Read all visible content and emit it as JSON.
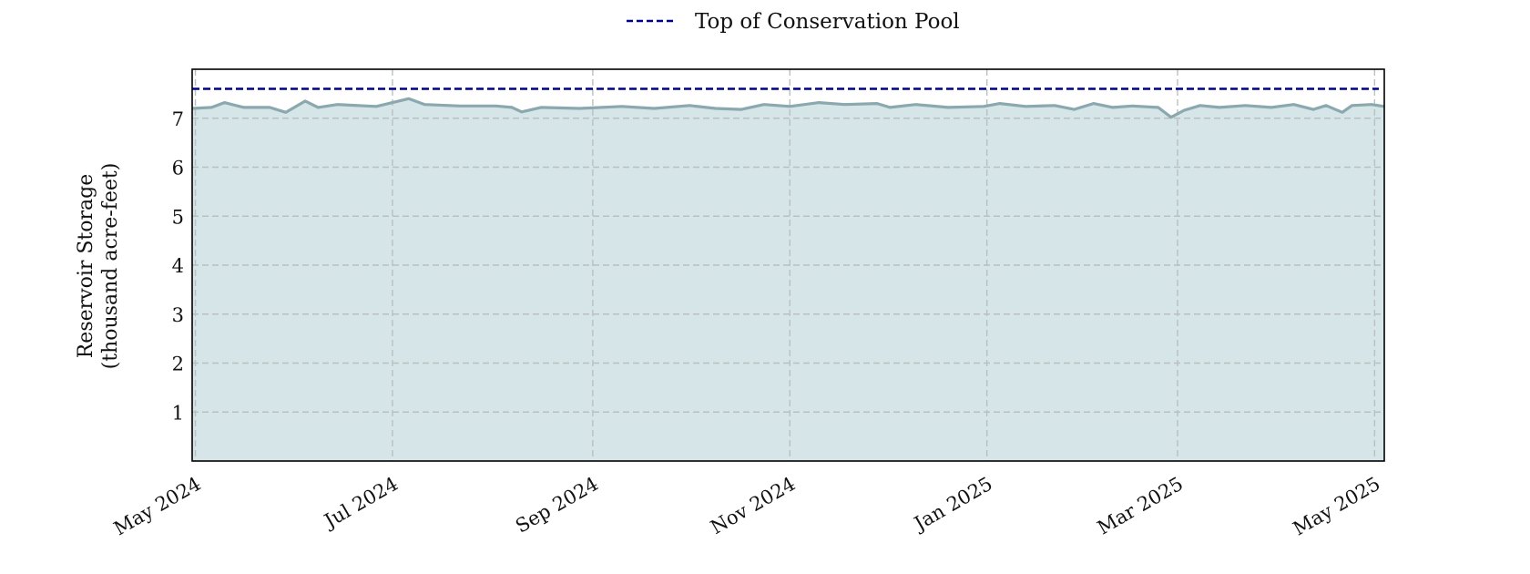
{
  "chart_data": {
    "type": "area",
    "title": "",
    "xlabel": "",
    "ylabel_lines": [
      "Reservoir Storage",
      "(thousand acre-feet)"
    ],
    "x_range": [
      "2024-04-30",
      "2025-05-04"
    ],
    "ylim": [
      0,
      8.0
    ],
    "y_ticks": [
      1,
      2,
      3,
      4,
      5,
      6,
      7
    ],
    "x_ticks": [
      {
        "date": "2024-05-01",
        "label": "May 2024"
      },
      {
        "date": "2024-07-01",
        "label": "Jul 2024"
      },
      {
        "date": "2024-09-01",
        "label": "Sep 2024"
      },
      {
        "date": "2024-11-01",
        "label": "Nov 2024"
      },
      {
        "date": "2025-01-01",
        "label": "Jan 2025"
      },
      {
        "date": "2025-03-01",
        "label": "Mar 2025"
      },
      {
        "date": "2025-05-01",
        "label": "May 2025"
      }
    ],
    "grid": true,
    "legend": {
      "position": "top-center",
      "entries": [
        {
          "label": "Top of Conservation Pool",
          "style": "dashed",
          "color": "#00008b"
        }
      ]
    },
    "reference_line": {
      "label": "Top of Conservation Pool",
      "value": 7.6,
      "color": "#00008b"
    },
    "series": [
      {
        "style": "line-with-area-fill",
        "line_color": "#8aa8ae",
        "fill_color": "#d6e5e7",
        "points": [
          [
            "2024-04-30",
            7.2
          ],
          [
            "2024-05-06",
            7.22
          ],
          [
            "2024-05-10",
            7.32
          ],
          [
            "2024-05-16",
            7.22
          ],
          [
            "2024-05-24",
            7.22
          ],
          [
            "2024-05-29",
            7.12
          ],
          [
            "2024-06-04",
            7.35
          ],
          [
            "2024-06-08",
            7.22
          ],
          [
            "2024-06-14",
            7.28
          ],
          [
            "2024-06-26",
            7.24
          ],
          [
            "2024-07-06",
            7.4
          ],
          [
            "2024-07-11",
            7.28
          ],
          [
            "2024-07-22",
            7.25
          ],
          [
            "2024-08-02",
            7.25
          ],
          [
            "2024-08-07",
            7.22
          ],
          [
            "2024-08-10",
            7.13
          ],
          [
            "2024-08-16",
            7.22
          ],
          [
            "2024-08-28",
            7.2
          ],
          [
            "2024-09-10",
            7.24
          ],
          [
            "2024-09-20",
            7.2
          ],
          [
            "2024-10-01",
            7.26
          ],
          [
            "2024-10-09",
            7.2
          ],
          [
            "2024-10-17",
            7.18
          ],
          [
            "2024-10-24",
            7.28
          ],
          [
            "2024-11-01",
            7.24
          ],
          [
            "2024-11-10",
            7.32
          ],
          [
            "2024-11-18",
            7.28
          ],
          [
            "2024-11-28",
            7.3
          ],
          [
            "2024-12-02",
            7.22
          ],
          [
            "2024-12-10",
            7.28
          ],
          [
            "2024-12-20",
            7.22
          ],
          [
            "2024-12-31",
            7.24
          ],
          [
            "2025-01-05",
            7.3
          ],
          [
            "2025-01-13",
            7.24
          ],
          [
            "2025-01-22",
            7.26
          ],
          [
            "2025-01-28",
            7.18
          ],
          [
            "2025-02-03",
            7.3
          ],
          [
            "2025-02-09",
            7.22
          ],
          [
            "2025-02-15",
            7.25
          ],
          [
            "2025-02-23",
            7.22
          ],
          [
            "2025-02-27",
            7.02
          ],
          [
            "2025-03-03",
            7.16
          ],
          [
            "2025-03-08",
            7.26
          ],
          [
            "2025-03-14",
            7.22
          ],
          [
            "2025-03-22",
            7.26
          ],
          [
            "2025-03-30",
            7.22
          ],
          [
            "2025-04-06",
            7.28
          ],
          [
            "2025-04-12",
            7.18
          ],
          [
            "2025-04-16",
            7.26
          ],
          [
            "2025-04-21",
            7.12
          ],
          [
            "2025-04-24",
            7.26
          ],
          [
            "2025-04-30",
            7.28
          ],
          [
            "2025-05-04",
            7.24
          ]
        ]
      }
    ]
  }
}
